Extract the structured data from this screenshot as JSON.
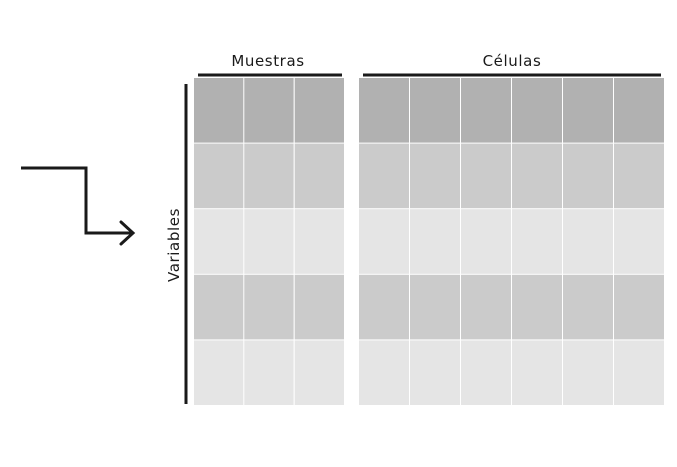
{
  "diagram": {
    "labels": {
      "samples": "Muestras",
      "cells": "Células",
      "variables": "Variables"
    },
    "matrices": [
      {
        "name": "samples-matrix",
        "columns": 3,
        "row_shades": [
          "#b1b1b1",
          "#cbcbcb",
          "#e5e5e5",
          "#cbcbcb",
          "#e5e5e5"
        ]
      },
      {
        "name": "cells-matrix",
        "columns": 6,
        "row_shades": [
          "#b1b1b1",
          "#cbcbcb",
          "#e5e5e5",
          "#cbcbcb",
          "#e5e5e5"
        ]
      }
    ],
    "colors": {
      "line": "#1a1a1a",
      "grid_gap": "#ffffff"
    },
    "icons": {
      "arrow": "step-arrow-icon"
    }
  }
}
